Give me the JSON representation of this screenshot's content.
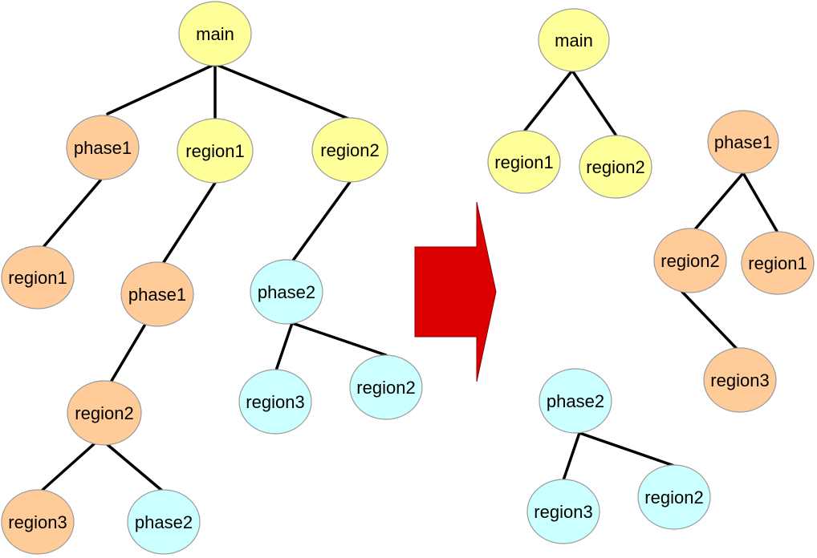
{
  "colors": {
    "main": "#ffff99",
    "phase": "#ffcc99",
    "task": "#ccffff",
    "arrow": "#dd0000"
  },
  "nodes": {
    "l_main": {
      "label": "main",
      "kind": "main"
    },
    "l_phase1": {
      "label": "phase1",
      "kind": "phase"
    },
    "l_region1": {
      "label": "region1",
      "kind": "main"
    },
    "l_region2": {
      "label": "region2",
      "kind": "main"
    },
    "l_phase1_region1": {
      "label": "region1",
      "kind": "phase"
    },
    "l_region1_phase1": {
      "label": "phase1",
      "kind": "phase"
    },
    "l_region1_phase1_region2": {
      "label": "region2",
      "kind": "phase"
    },
    "l_region1_phase1_region2_region3": {
      "label": "region3",
      "kind": "phase"
    },
    "l_region1_phase1_region2_phase2": {
      "label": "phase2",
      "kind": "task"
    },
    "l_region2_phase2": {
      "label": "phase2",
      "kind": "task"
    },
    "l_region2_phase2_region3": {
      "label": "region3",
      "kind": "task"
    },
    "l_region2_phase2_region2": {
      "label": "region2",
      "kind": "task"
    },
    "r_main": {
      "label": "main",
      "kind": "main"
    },
    "r_region1": {
      "label": "region1",
      "kind": "main"
    },
    "r_region2": {
      "label": "region2",
      "kind": "main"
    },
    "r_phase1": {
      "label": "phase1",
      "kind": "phase"
    },
    "r_phase1_region2": {
      "label": "region2",
      "kind": "phase"
    },
    "r_phase1_region1": {
      "label": "region1",
      "kind": "phase"
    },
    "r_phase1_region2_region3": {
      "label": "region3",
      "kind": "phase"
    },
    "r_phase2": {
      "label": "phase2",
      "kind": "task"
    },
    "r_phase2_region3": {
      "label": "region3",
      "kind": "task"
    },
    "r_phase2_region2": {
      "label": "region2",
      "kind": "task"
    }
  },
  "edges": [
    [
      "l_main",
      "l_phase1"
    ],
    [
      "l_main",
      "l_region1"
    ],
    [
      "l_main",
      "l_region2"
    ],
    [
      "l_phase1",
      "l_phase1_region1"
    ],
    [
      "l_region1",
      "l_region1_phase1"
    ],
    [
      "l_region1_phase1",
      "l_region1_phase1_region2"
    ],
    [
      "l_region1_phase1_region2",
      "l_region1_phase1_region2_region3"
    ],
    [
      "l_region1_phase1_region2",
      "l_region1_phase1_region2_phase2"
    ],
    [
      "l_region2",
      "l_region2_phase2"
    ],
    [
      "l_region2_phase2",
      "l_region2_phase2_region3"
    ],
    [
      "l_region2_phase2",
      "l_region2_phase2_region2"
    ],
    [
      "r_main",
      "r_region1"
    ],
    [
      "r_main",
      "r_region2"
    ],
    [
      "r_phase1",
      "r_phase1_region2"
    ],
    [
      "r_phase1",
      "r_phase1_region1"
    ],
    [
      "r_phase1_region2",
      "r_phase1_region2_region3"
    ],
    [
      "r_phase2",
      "r_phase2_region3"
    ],
    [
      "r_phase2",
      "r_phase2_region2"
    ]
  ]
}
